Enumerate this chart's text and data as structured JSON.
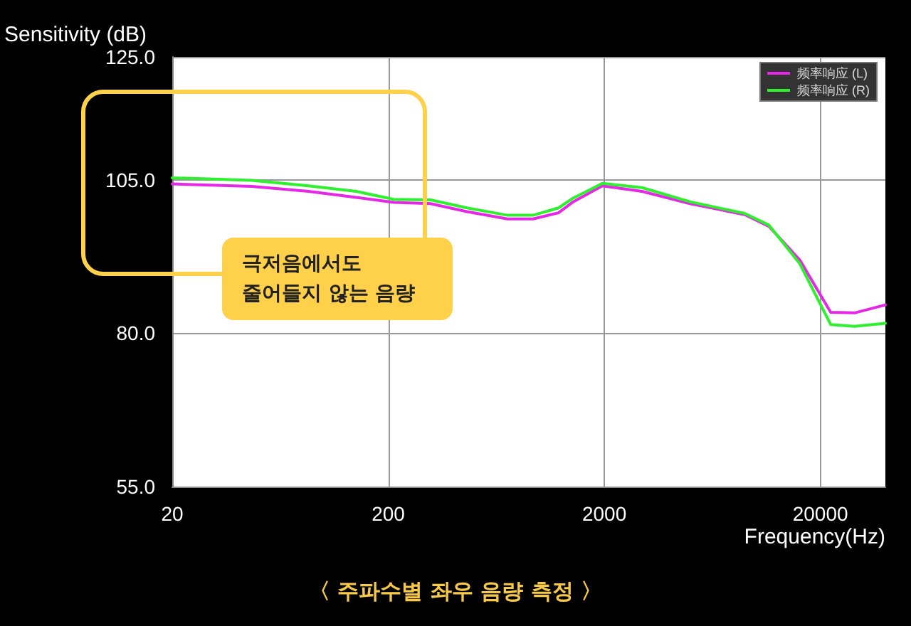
{
  "chart_data": {
    "type": "line",
    "xlabel": "Frequency(Hz)",
    "ylabel": "Sensitivity (dB)",
    "annotations": [
      "극저음에서도\n줄어들지 않는 음량",
      "〈 주파수별 좌우 음량 측정 〉"
    ],
    "x": [
      20,
      46.6,
      85.5,
      142,
      212,
      314,
      463,
      713,
      936,
      1228,
      1436,
      1960,
      2987,
      4990,
      8930,
      11560,
      16070,
      22330,
      28800,
      40000
    ],
    "series": [
      {
        "name": "频率响应 (L)",
        "color": "#e628e6",
        "values": [
          104.3,
          103.9,
          103.1,
          102.1,
          101.3,
          101.1,
          99.8,
          98.6,
          98.6,
          99.6,
          101.4,
          104.0,
          103.1,
          101.1,
          99.3,
          97.4,
          91.9,
          83.4,
          83.3,
          84.6
        ]
      },
      {
        "name": "频率响应 (R)",
        "color": "#2ef02e",
        "values": [
          105.3,
          104.9,
          104.0,
          103.1,
          101.8,
          101.7,
          100.4,
          99.2,
          99.2,
          100.4,
          102.0,
          104.4,
          103.7,
          101.4,
          99.5,
          97.6,
          91.3,
          81.4,
          81.1,
          81.6
        ]
      }
    ],
    "log": "x",
    "xlim": [
      20,
      40000
    ],
    "xticks": [
      20,
      200,
      2000,
      20000
    ],
    "ylim": [
      55,
      125
    ],
    "yticks": [
      {
        "value": 55,
        "label": "55.0"
      },
      {
        "value": 80,
        "label": "80.0"
      },
      {
        "value": 105,
        "label": "105.0"
      },
      {
        "value": 125,
        "label": "125.0"
      }
    ],
    "grid": true,
    "legend": "top right",
    "marker": "none",
    "line_style": "solid"
  }
}
